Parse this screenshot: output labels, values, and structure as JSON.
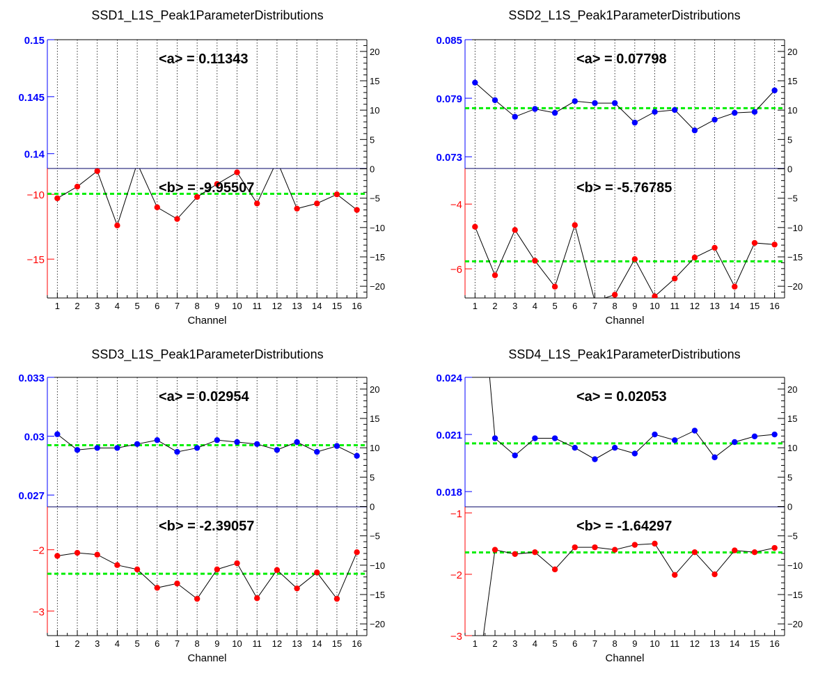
{
  "colors": {
    "a_axis": "#0000ff",
    "b_axis": "#ff0000",
    "a_points": "#0000ff",
    "b_points": "#ff0000",
    "mean_line": "#00ee00",
    "frame": "#000000",
    "grid": "#000000"
  },
  "chart_data": [
    {
      "type": "scatter",
      "title": "SSD1_L1S_Peak1ParameterDistributions",
      "xlabel": "Channel",
      "x": [
        1,
        2,
        3,
        4,
        5,
        6,
        7,
        8,
        9,
        10,
        11,
        12,
        13,
        14,
        15,
        16
      ],
      "x_ticks": [
        "1",
        "2",
        "3",
        "4",
        "5",
        "6",
        "7",
        "8",
        "9",
        "10",
        "11",
        "12",
        "13",
        "14",
        "15",
        "16"
      ],
      "grid_x": true,
      "right_axis": {
        "ylim": [
          -22,
          22
        ],
        "ticks": [
          "20",
          "15",
          "10",
          "5",
          "0",
          "−5",
          "−10",
          "−15",
          "−20"
        ]
      },
      "top": {
        "name": "a",
        "annotation": "<a> = 0.11343",
        "ylim": [
          0.1387,
          0.15
        ],
        "ticks": [
          "0.15",
          "0.145",
          "0.14"
        ],
        "mean": 0.11343,
        "values": []
      },
      "bottom": {
        "name": "b",
        "annotation": "<b> = -9.95507",
        "ylim": [
          -18,
          -8
        ],
        "ticks": [
          "−10",
          "−15"
        ],
        "mean": -9.95507,
        "values": [
          -10.3,
          -9.4,
          -8.2,
          -12.4,
          -7.6,
          -11.0,
          -11.9,
          -10.2,
          -9.2,
          -8.3,
          -10.7,
          -7.4,
          -11.1,
          -10.7,
          -10.0,
          -11.2
        ]
      }
    },
    {
      "type": "scatter",
      "title": "SSD2_L1S_Peak1ParameterDistributions",
      "xlabel": "Channel",
      "x": [
        1,
        2,
        3,
        4,
        5,
        6,
        7,
        8,
        9,
        10,
        11,
        12,
        13,
        14,
        15,
        16
      ],
      "x_ticks": [
        "1",
        "2",
        "3",
        "4",
        "5",
        "6",
        "7",
        "8",
        "9",
        "10",
        "11",
        "12",
        "13",
        "14",
        "15",
        "16"
      ],
      "grid_x": true,
      "right_axis": {
        "ylim": [
          -22,
          22
        ],
        "ticks": [
          "20",
          "15",
          "10",
          "5",
          "0",
          "−5",
          "−10",
          "−15",
          "−20"
        ]
      },
      "top": {
        "name": "a",
        "annotation": "<a> = 0.07798",
        "ylim": [
          0.0718,
          0.085
        ],
        "ticks": [
          "0.085",
          "0.079",
          "0.073"
        ],
        "mean": 0.07798,
        "values": [
          0.0806,
          0.0788,
          0.0771,
          0.0779,
          0.0775,
          0.0787,
          0.0785,
          0.0785,
          0.0765,
          0.0776,
          0.0778,
          0.0757,
          0.0768,
          0.0775,
          0.0776,
          0.0798
        ]
      },
      "bottom": {
        "name": "b",
        "annotation": "<b> = -5.76785",
        "ylim": [
          -6.9,
          -2.9
        ],
        "ticks": [
          "−4",
          "−6"
        ],
        "mean": -5.76785,
        "values": [
          -4.7,
          -6.2,
          -4.8,
          -5.75,
          -6.55,
          -4.65,
          -7.0,
          -6.8,
          -5.7,
          -6.85,
          -6.3,
          -5.65,
          -5.35,
          -6.55,
          -5.2,
          -5.25
        ]
      }
    },
    {
      "type": "scatter",
      "title": "SSD3_L1S_Peak1ParameterDistributions",
      "xlabel": "Channel",
      "x": [
        1,
        2,
        3,
        4,
        5,
        6,
        7,
        8,
        9,
        10,
        11,
        12,
        13,
        14,
        15,
        16
      ],
      "x_ticks": [
        "1",
        "2",
        "3",
        "4",
        "5",
        "6",
        "7",
        "8",
        "9",
        "10",
        "11",
        "12",
        "13",
        "14",
        "15",
        "16"
      ],
      "grid_x": true,
      "right_axis": {
        "ylim": [
          -22,
          22
        ],
        "ticks": [
          "20",
          "15",
          "10",
          "5",
          "0",
          "−5",
          "−10",
          "−15",
          "−20"
        ]
      },
      "top": {
        "name": "a",
        "annotation": "<a> = 0.02954",
        "ylim": [
          0.0264,
          0.033
        ],
        "ticks": [
          "0.033",
          "0.03",
          "0.027"
        ],
        "mean": 0.02954,
        "values": [
          0.0301,
          0.0293,
          0.0294,
          0.0294,
          0.0296,
          0.0298,
          0.0292,
          0.0294,
          0.0298,
          0.0297,
          0.0296,
          0.0293,
          0.0297,
          0.0292,
          0.0295,
          0.029
        ]
      },
      "bottom": {
        "name": "b",
        "annotation": "<b> = -2.39057",
        "ylim": [
          -3.4,
          -1.3
        ],
        "ticks": [
          "−2",
          "−3"
        ],
        "mean": -2.39057,
        "values": [
          -2.1,
          -2.05,
          -2.08,
          -2.25,
          -2.32,
          -2.62,
          -2.55,
          -2.8,
          -2.32,
          -2.22,
          -2.79,
          -2.33,
          -2.63,
          -2.37,
          -2.8,
          -2.04
        ]
      }
    },
    {
      "type": "scatter",
      "title": "SSD4_L1S_Peak1ParameterDistributions",
      "xlabel": "Channel",
      "x": [
        1,
        2,
        3,
        4,
        5,
        6,
        7,
        8,
        9,
        10,
        11,
        12,
        13,
        14,
        15,
        16
      ],
      "x_ticks": [
        "1",
        "2",
        "3",
        "4",
        "5",
        "6",
        "7",
        "8",
        "9",
        "10",
        "11",
        "12",
        "13",
        "14",
        "15",
        "16"
      ],
      "grid_x": false,
      "right_axis": {
        "ylim": [
          -22,
          22
        ],
        "ticks": [
          "20",
          "15",
          "10",
          "5",
          "0",
          "−5",
          "−10",
          "−15",
          "−20"
        ]
      },
      "top": {
        "name": "a",
        "annotation": "<a> = 0.02053",
        "ylim": [
          0.0172,
          0.024
        ],
        "ticks": [
          "0.024",
          "0.021",
          "0.018"
        ],
        "mean": 0.02053,
        "values": [
          null,
          0.0208,
          0.0199,
          0.0208,
          0.0208,
          0.0203,
          0.0197,
          0.0203,
          0.02,
          0.021,
          0.0207,
          0.0212,
          0.0198,
          0.0206,
          0.0209,
          0.021
        ],
        "line_start": [
          0.9,
          0.034
        ]
      },
      "bottom": {
        "name": "b",
        "annotation": "<b> = -1.64297",
        "ylim": [
          -3.0,
          -0.9
        ],
        "ticks": [
          "−1",
          "−2",
          "−3"
        ],
        "mean": -1.64297,
        "values": [
          -4.0,
          -1.6,
          -1.67,
          -1.64,
          -1.92,
          -1.56,
          -1.56,
          -1.6,
          -1.52,
          -1.5,
          -2.01,
          -1.64,
          -2.0,
          -1.61,
          -1.64,
          -1.57
        ]
      }
    }
  ]
}
